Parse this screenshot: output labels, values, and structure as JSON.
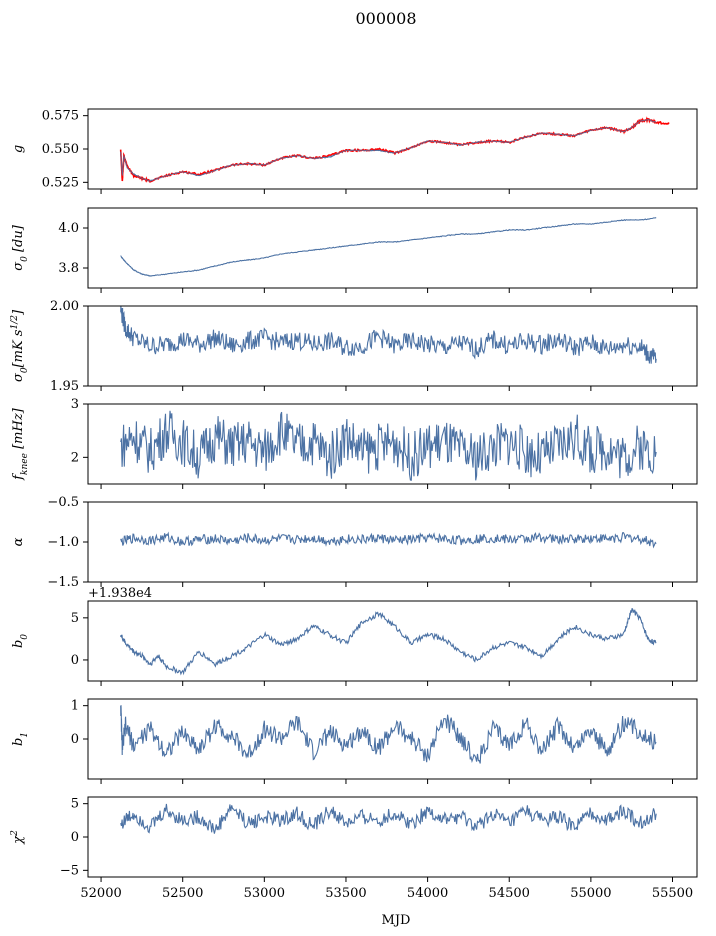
{
  "figure": {
    "title": "000008",
    "xlabel": "MJD"
  },
  "colors": {
    "series": "#4c72a4",
    "overlay": "#ff0000"
  },
  "chart_data": [
    {
      "type": "line",
      "ylabel": "g",
      "ylim": [
        0.52,
        0.58
      ],
      "yticks": [
        0.525,
        0.55,
        0.575
      ],
      "ytick_labels": [
        "0.525",
        "0.550",
        "0.575"
      ],
      "series": [
        {
          "x": [
            52120,
            52130,
            52140,
            52160,
            52200,
            52250,
            52300,
            52400,
            52500,
            52600,
            52700,
            52800,
            52900,
            53000,
            53100,
            53200,
            53300,
            53400,
            53500,
            53600,
            53700,
            53800,
            53900,
            54000,
            54100,
            54200,
            54300,
            54400,
            54500,
            54600,
            54700,
            54800,
            54900,
            55000,
            55100,
            55200,
            55250,
            55300,
            55350,
            55400
          ],
          "y": [
            0.548,
            0.53,
            0.545,
            0.536,
            0.531,
            0.528,
            0.526,
            0.53,
            0.533,
            0.53,
            0.534,
            0.538,
            0.539,
            0.538,
            0.543,
            0.545,
            0.543,
            0.544,
            0.549,
            0.549,
            0.549,
            0.547,
            0.551,
            0.556,
            0.555,
            0.553,
            0.555,
            0.556,
            0.555,
            0.559,
            0.562,
            0.561,
            0.56,
            0.564,
            0.566,
            0.563,
            0.566,
            0.571,
            0.572,
            0.57
          ]
        },
        {
          "style": "overlay",
          "x": [
            52120,
            52130,
            52140,
            52160,
            52200,
            52250,
            52300,
            52400,
            52500,
            52600,
            52700,
            52800,
            52900,
            53000,
            53100,
            53200,
            53300,
            53400,
            53500,
            53600,
            53700,
            53800,
            53900,
            54000,
            54100,
            54200,
            54300,
            54400,
            54500,
            54600,
            54700,
            54800,
            54900,
            55000,
            55100,
            55200,
            55250,
            55300,
            55350,
            55400,
            55480
          ],
          "y": [
            0.55,
            0.526,
            0.545,
            0.537,
            0.53,
            0.528,
            0.526,
            0.53,
            0.533,
            0.531,
            0.534,
            0.538,
            0.539,
            0.538,
            0.543,
            0.545,
            0.543,
            0.545,
            0.549,
            0.549,
            0.55,
            0.547,
            0.551,
            0.556,
            0.555,
            0.553,
            0.555,
            0.556,
            0.555,
            0.559,
            0.562,
            0.561,
            0.56,
            0.564,
            0.566,
            0.563,
            0.566,
            0.571,
            0.572,
            0.57,
            0.569
          ]
        }
      ]
    },
    {
      "type": "line",
      "ylabel": "σ0 [du]",
      "ylim": [
        3.7,
        4.1
      ],
      "yticks": [
        3.8,
        4.0
      ],
      "ytick_labels": [
        "3.8",
        "4.0"
      ],
      "series": [
        {
          "x": [
            52120,
            52150,
            52200,
            52250,
            52300,
            52400,
            52500,
            52600,
            52700,
            52800,
            52900,
            53000,
            53100,
            53200,
            53300,
            53400,
            53500,
            53600,
            53700,
            53800,
            53900,
            54000,
            54100,
            54200,
            54300,
            54400,
            54500,
            54600,
            54700,
            54800,
            54900,
            55000,
            55100,
            55200,
            55300,
            55400
          ],
          "y": [
            3.86,
            3.83,
            3.79,
            3.77,
            3.76,
            3.77,
            3.78,
            3.79,
            3.81,
            3.83,
            3.84,
            3.85,
            3.87,
            3.88,
            3.89,
            3.9,
            3.91,
            3.92,
            3.93,
            3.93,
            3.94,
            3.95,
            3.96,
            3.97,
            3.97,
            3.98,
            3.99,
            3.99,
            4.0,
            4.01,
            4.02,
            4.02,
            4.03,
            4.04,
            4.04,
            4.05
          ]
        }
      ]
    },
    {
      "type": "line",
      "ylabel": "σ0[mK s^1/2]",
      "ylim": [
        1.95,
        2.0
      ],
      "yticks": [
        1.95,
        2.0
      ],
      "ytick_labels": [
        "1.95",
        "2.00"
      ],
      "series": [
        {
          "x": [
            52120,
            52150,
            52200,
            52300,
            52400,
            52500,
            52600,
            52700,
            52800,
            52900,
            53000,
            53100,
            53200,
            53300,
            53400,
            53500,
            53600,
            53700,
            53800,
            53900,
            54000,
            54100,
            54200,
            54300,
            54400,
            54500,
            54600,
            54700,
            54800,
            54900,
            55000,
            55100,
            55200,
            55300,
            55350,
            55400
          ],
          "y": [
            1.998,
            1.986,
            1.98,
            1.975,
            1.976,
            1.979,
            1.976,
            1.98,
            1.975,
            1.978,
            1.98,
            1.977,
            1.979,
            1.976,
            1.978,
            1.974,
            1.975,
            1.981,
            1.975,
            1.978,
            1.976,
            1.974,
            1.977,
            1.973,
            1.979,
            1.975,
            1.978,
            1.976,
            1.979,
            1.974,
            1.977,
            1.973,
            1.976,
            1.975,
            1.97,
            1.967
          ]
        }
      ]
    },
    {
      "type": "line",
      "ylabel": "fknee [mHz]",
      "ylim": [
        1.5,
        3.0
      ],
      "yticks": [
        2,
        3
      ],
      "ytick_labels": [
        "2",
        "3"
      ],
      "series": [
        {
          "x": [
            52120,
            52200,
            52300,
            52400,
            52500,
            52600,
            52700,
            52800,
            52900,
            53000,
            53100,
            53200,
            53300,
            53400,
            53500,
            53600,
            53700,
            53800,
            53900,
            54000,
            54100,
            54200,
            54300,
            54400,
            54500,
            54600,
            54700,
            54800,
            54900,
            55000,
            55100,
            55200,
            55300,
            55400
          ],
          "y": [
            2.2,
            2.4,
            2.1,
            2.5,
            2.3,
            2.0,
            2.4,
            2.2,
            2.3,
            2.1,
            2.5,
            2.2,
            2.3,
            2.0,
            2.4,
            2.1,
            2.2,
            2.3,
            2.0,
            2.2,
            2.3,
            2.1,
            2.0,
            2.2,
            2.3,
            2.1,
            2.0,
            2.2,
            2.4,
            2.1,
            2.2,
            2.0,
            2.2,
            2.1
          ]
        }
      ]
    },
    {
      "type": "line",
      "ylabel": "α",
      "ylim": [
        -1.5,
        -0.5
      ],
      "yticks": [
        -1.5,
        -1.0,
        -0.5
      ],
      "ytick_labels": [
        "−1.5",
        "−1.0",
        "−0.5"
      ],
      "series": [
        {
          "x": [
            52120,
            52200,
            52300,
            52400,
            52500,
            52600,
            52700,
            52800,
            52900,
            53000,
            53100,
            53200,
            53300,
            53400,
            53500,
            53600,
            53700,
            53800,
            53900,
            54000,
            54100,
            54200,
            54300,
            54400,
            54500,
            54600,
            54700,
            54800,
            54900,
            55000,
            55100,
            55200,
            55300,
            55400
          ],
          "y": [
            -1.0,
            -0.95,
            -0.98,
            -0.94,
            -1.0,
            -0.97,
            -0.96,
            -0.99,
            -0.95,
            -0.98,
            -0.96,
            -0.97,
            -0.95,
            -0.99,
            -0.96,
            -0.97,
            -0.95,
            -0.98,
            -0.97,
            -0.95,
            -0.96,
            -0.98,
            -0.96,
            -0.95,
            -0.97,
            -0.96,
            -0.94,
            -0.97,
            -0.96,
            -0.95,
            -0.96,
            -0.94,
            -0.96,
            -1.02
          ]
        }
      ]
    },
    {
      "type": "line",
      "ylabel": "b0",
      "offset_label": "+1.938e4",
      "ylim": [
        -2.5,
        7
      ],
      "yticks": [
        0,
        5
      ],
      "ytick_labels": [
        "0",
        "5"
      ],
      "series": [
        {
          "x": [
            52120,
            52150,
            52200,
            52250,
            52300,
            52350,
            52400,
            52500,
            52600,
            52700,
            52800,
            52900,
            53000,
            53100,
            53200,
            53300,
            53400,
            53500,
            53600,
            53700,
            53800,
            53900,
            54000,
            54100,
            54200,
            54300,
            54400,
            54500,
            54600,
            54700,
            54800,
            54900,
            55000,
            55100,
            55200,
            55250,
            55300,
            55350,
            55400
          ],
          "y": [
            3.0,
            2.0,
            1.0,
            0.5,
            -0.5,
            0.5,
            -0.8,
            -1.5,
            1.0,
            -0.5,
            0.5,
            1.5,
            3.0,
            1.8,
            2.5,
            4.0,
            3.0,
            2.0,
            4.5,
            5.5,
            4.0,
            2.0,
            3.0,
            2.5,
            1.0,
            0.0,
            1.5,
            2.0,
            1.5,
            0.5,
            2.5,
            4.0,
            3.0,
            2.5,
            3.0,
            6.0,
            5.0,
            2.5,
            2.0
          ]
        }
      ]
    },
    {
      "type": "line",
      "ylabel": "b1",
      "ylim": [
        -1.2,
        1.2
      ],
      "yticks": [
        0,
        1
      ],
      "ytick_labels": [
        "0",
        "1"
      ],
      "series": [
        {
          "x": [
            52120,
            52130,
            52150,
            52200,
            52300,
            52400,
            52500,
            52600,
            52700,
            52800,
            52900,
            53000,
            53100,
            53200,
            53300,
            53400,
            53500,
            53600,
            53700,
            53800,
            53900,
            54000,
            54100,
            54200,
            54300,
            54400,
            54500,
            54600,
            54700,
            54800,
            54900,
            55000,
            55100,
            55200,
            55300,
            55400
          ],
          "y": [
            1.1,
            -0.3,
            0.4,
            -0.2,
            0.3,
            -0.4,
            0.2,
            -0.3,
            0.4,
            0.1,
            -0.5,
            0.3,
            0.0,
            0.5,
            -0.4,
            0.2,
            -0.2,
            0.3,
            -0.3,
            0.4,
            0.0,
            -0.5,
            0.6,
            0.1,
            -0.7,
            0.3,
            -0.2,
            0.5,
            -0.4,
            0.4,
            -0.3,
            0.3,
            -0.4,
            0.5,
            0.2,
            -0.1
          ]
        }
      ]
    },
    {
      "type": "line",
      "ylabel": "χ²",
      "ylim": [
        -6,
        6
      ],
      "yticks": [
        -5,
        0,
        5
      ],
      "ytick_labels": [
        "−5",
        "0",
        "5"
      ],
      "series": [
        {
          "x": [
            52120,
            52200,
            52300,
            52400,
            52500,
            52600,
            52700,
            52800,
            52900,
            53000,
            53100,
            53200,
            53300,
            53400,
            53500,
            53600,
            53700,
            53800,
            53900,
            54000,
            54100,
            54200,
            54300,
            54400,
            54500,
            54600,
            54700,
            54800,
            54900,
            55000,
            55100,
            55200,
            55300,
            55400
          ],
          "y": [
            2.0,
            3.5,
            1.5,
            4.0,
            2.5,
            3.0,
            1.0,
            4.5,
            2.0,
            3.0,
            2.5,
            3.5,
            1.5,
            4.0,
            2.0,
            3.0,
            2.5,
            3.5,
            2.0,
            4.0,
            2.5,
            3.0,
            1.5,
            3.5,
            2.0,
            4.0,
            2.5,
            3.0,
            1.5,
            3.5,
            2.5,
            4.0,
            2.0,
            3.5
          ]
        }
      ]
    }
  ],
  "xaxis": {
    "xlim": [
      51920,
      55650
    ],
    "ticks": [
      52000,
      52500,
      53000,
      53500,
      54000,
      54500,
      55000,
      55500
    ],
    "tick_labels": [
      "52000",
      "52500",
      "53000",
      "53500",
      "54000",
      "54500",
      "55000",
      "55500"
    ]
  }
}
